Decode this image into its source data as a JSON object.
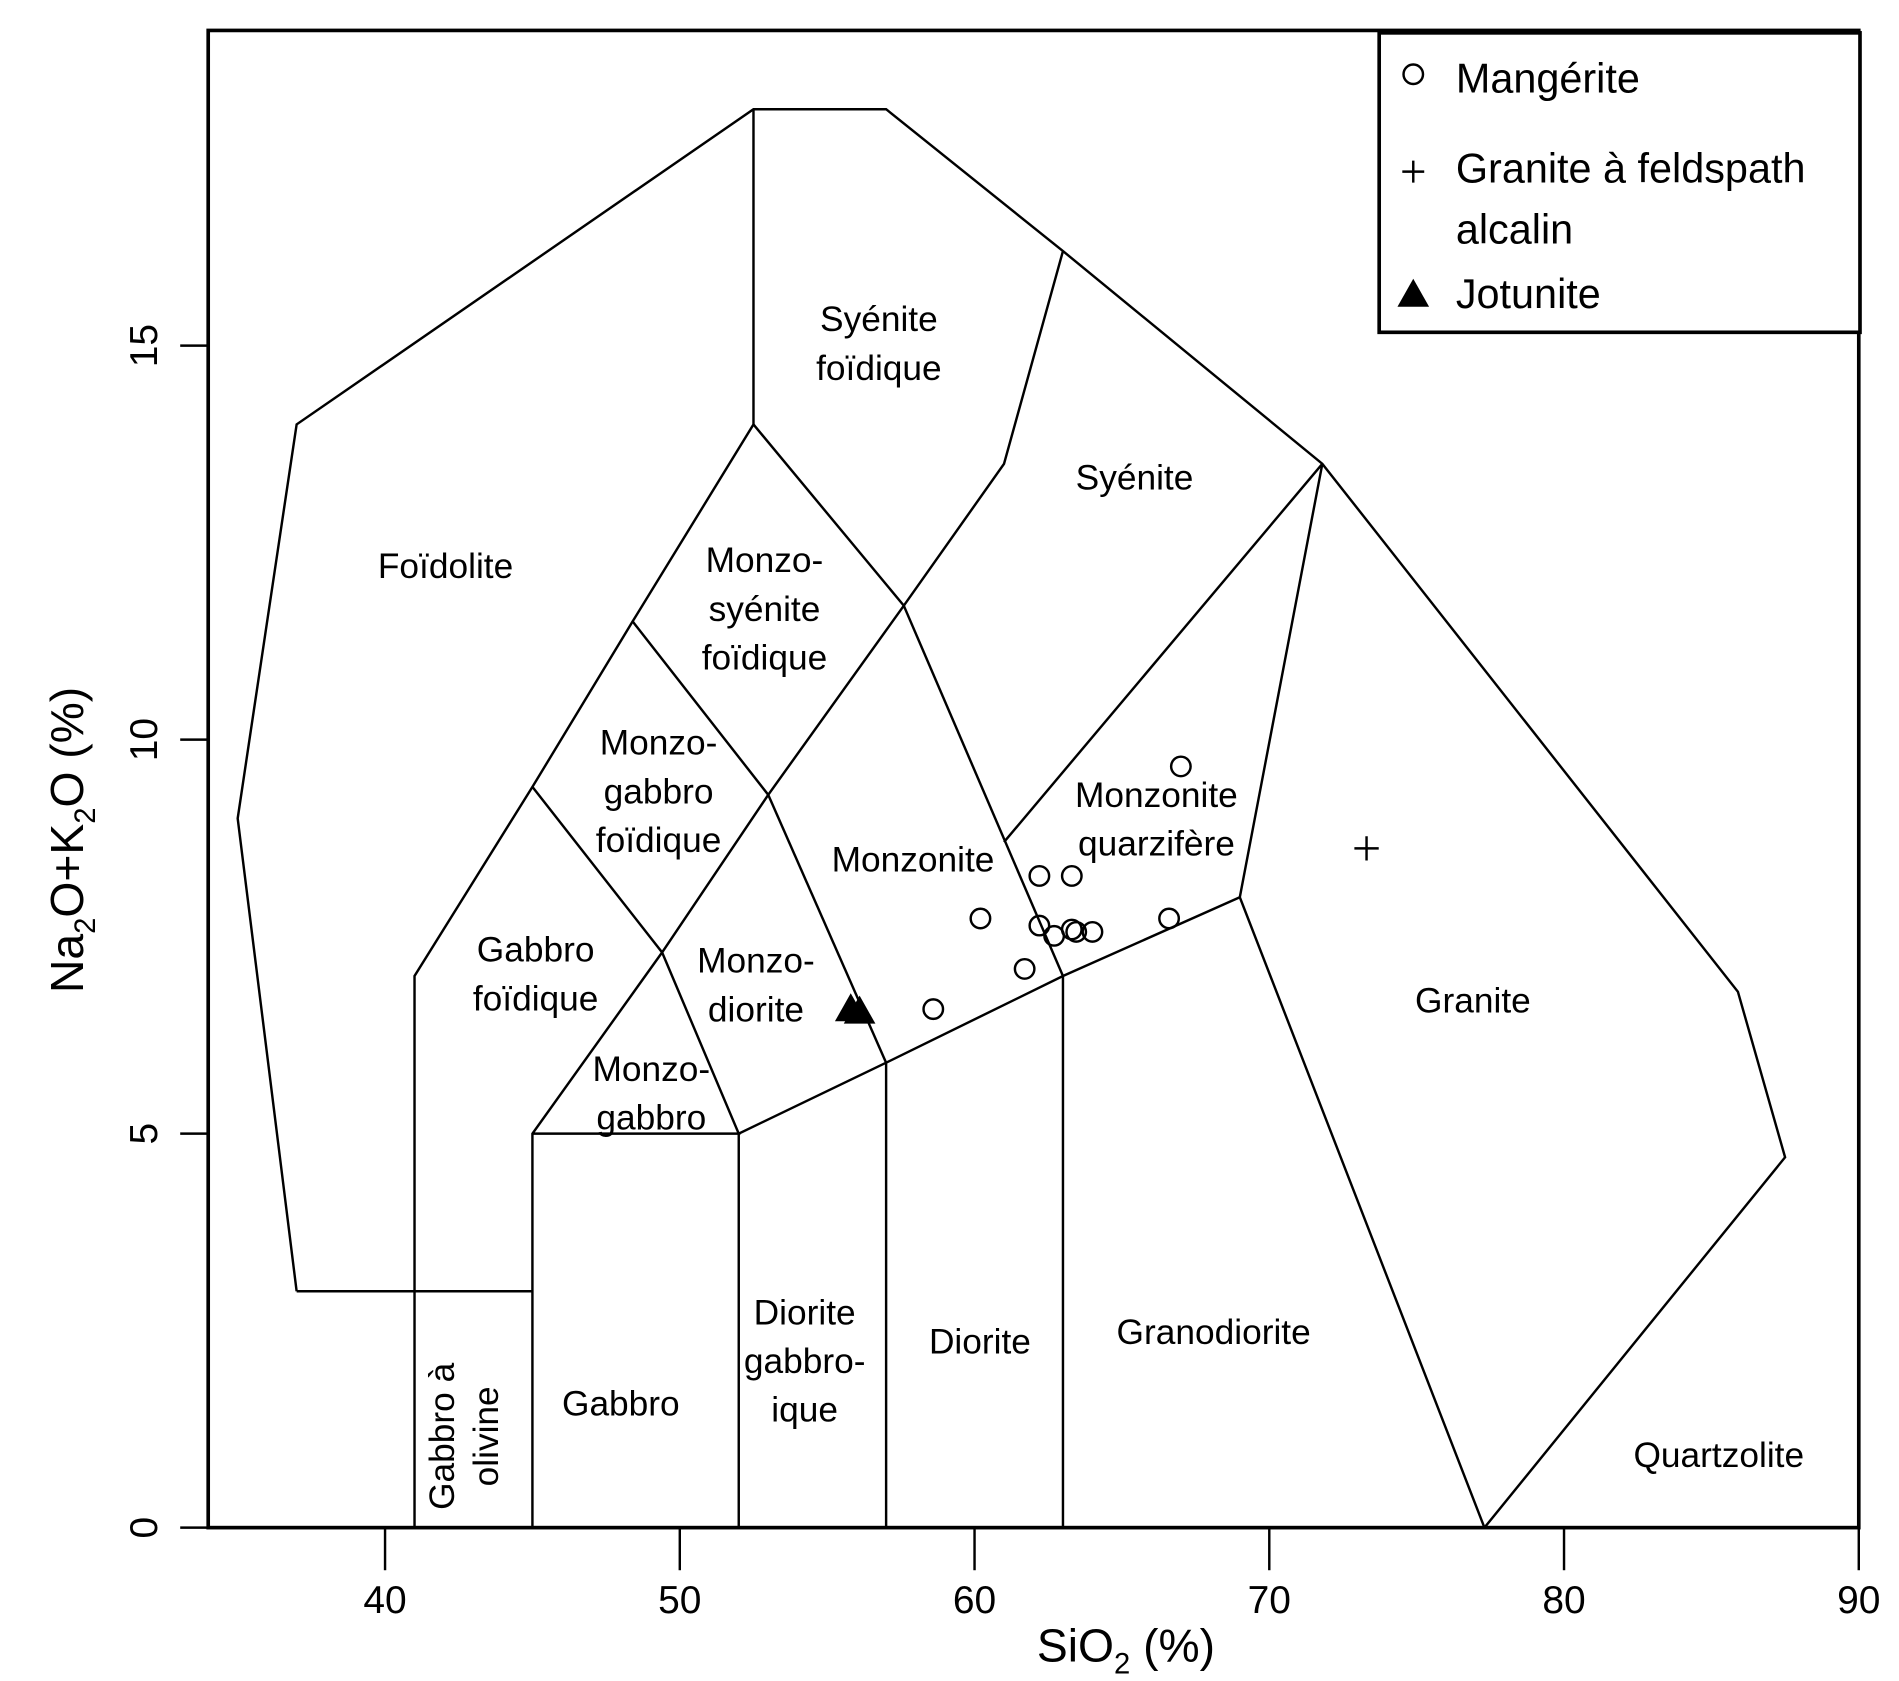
{
  "chart_data": {
    "type": "scatter",
    "title": "",
    "xlabel": "SiO2 (%)",
    "ylabel": "Na2O+K2O (%)",
    "xlim": [
      34,
      90
    ],
    "ylim": [
      0,
      19
    ],
    "xticks": [
      "40",
      "50",
      "60",
      "70",
      "80",
      "90"
    ],
    "xtick_values": [
      40,
      50,
      60,
      70,
      80,
      90
    ],
    "yticks": [
      "0",
      "5",
      "10",
      "15"
    ],
    "ytick_values": [
      0,
      5,
      10,
      15
    ],
    "grid": false,
    "legend_position": "top-right",
    "legend": [
      {
        "label": "Mangérite",
        "marker": "circle"
      },
      {
        "label": "Granite à feldspath alcalin",
        "marker": "plus"
      },
      {
        "label": "Jotunite",
        "marker": "triangle"
      }
    ],
    "series": [
      {
        "name": "Mangérite",
        "marker": "circle",
        "x": [
          67.0,
          62.2,
          63.3,
          60.2,
          62.2,
          62.7,
          63.3,
          63.45,
          64.0,
          66.6,
          61.7,
          58.6
        ],
        "y": [
          9.66,
          8.27,
          8.27,
          7.73,
          7.64,
          7.51,
          7.59,
          7.56,
          7.56,
          7.73,
          7.09,
          6.58
        ]
      },
      {
        "name": "Granite à feldspath alcalin",
        "marker": "plus",
        "x": [
          73.3
        ],
        "y": [
          8.62
        ]
      },
      {
        "name": "Jotunite",
        "marker": "triangle",
        "x": [
          55.8,
          56.1
        ],
        "y": [
          6.58,
          6.55
        ]
      }
    ],
    "field_boundaries": [
      [
        [
          37,
          3
        ],
        [
          35,
          9
        ],
        [
          37,
          14
        ],
        [
          52.5,
          18
        ],
        [
          57,
          18
        ],
        [
          63,
          16.2
        ],
        [
          71.8,
          13.5
        ],
        [
          85.9,
          6.8
        ],
        [
          87.5,
          4.7
        ],
        [
          77.3,
          0
        ]
      ],
      [
        [
          37,
          3
        ],
        [
          45,
          3
        ]
      ],
      [
        [
          41,
          0
        ],
        [
          41,
          7
        ],
        [
          45,
          9.4
        ],
        [
          48.4,
          11.5
        ],
        [
          52.5,
          14
        ],
        [
          52.5,
          18
        ]
      ],
      [
        [
          52.5,
          14
        ],
        [
          57.6,
          11.7
        ],
        [
          61,
          13.5
        ],
        [
          63,
          16.2
        ]
      ],
      [
        [
          48.4,
          11.5
        ],
        [
          53,
          9.3
        ],
        [
          57.6,
          11.7
        ]
      ],
      [
        [
          45,
          9.4
        ],
        [
          49.4,
          7.3
        ],
        [
          53,
          9.3
        ]
      ],
      [
        [
          45,
          0
        ],
        [
          45,
          5
        ],
        [
          49.4,
          7.3
        ],
        [
          52,
          5
        ],
        [
          45,
          5
        ]
      ],
      [
        [
          53,
          9.3
        ],
        [
          57,
          5.9
        ]
      ],
      [
        [
          52,
          0
        ],
        [
          52,
          5
        ],
        [
          57,
          5.9
        ],
        [
          63,
          7
        ],
        [
          69,
          8
        ]
      ],
      [
        [
          57,
          0
        ],
        [
          57,
          5.9
        ]
      ],
      [
        [
          63,
          0
        ],
        [
          63,
          7
        ]
      ],
      [
        [
          57.6,
          11.7
        ],
        [
          63,
          7
        ]
      ],
      [
        [
          61,
          8.7
        ],
        [
          71.8,
          13.5
        ]
      ],
      [
        [
          71.8,
          13.5
        ],
        [
          69,
          8
        ],
        [
          77.3,
          0
        ]
      ]
    ],
    "field_labels": [
      [
        "Syénite",
        "foïdique"
      ],
      [
        "Syénite"
      ],
      [
        "Foïdolite"
      ],
      [
        "Monzo-",
        "syénite",
        "foïdique"
      ],
      [
        "Monzo-",
        "gabbro",
        "foïdique"
      ],
      [
        "Monzonite"
      ],
      [
        "Monzonite",
        "quarzifère"
      ],
      [
        "Gabbro",
        "foïdique"
      ],
      [
        "Monzo-",
        "diorite"
      ],
      [
        "Monzo-",
        "gabbro"
      ],
      [
        "Granite"
      ],
      [
        "Diorite",
        "gabbro-",
        "ique"
      ],
      [
        "Diorite"
      ],
      [
        "Granodiorite"
      ],
      [
        "Gabbro"
      ],
      [
        "Quartzolite"
      ],
      [
        "Gabbro à",
        "olivine"
      ]
    ]
  }
}
